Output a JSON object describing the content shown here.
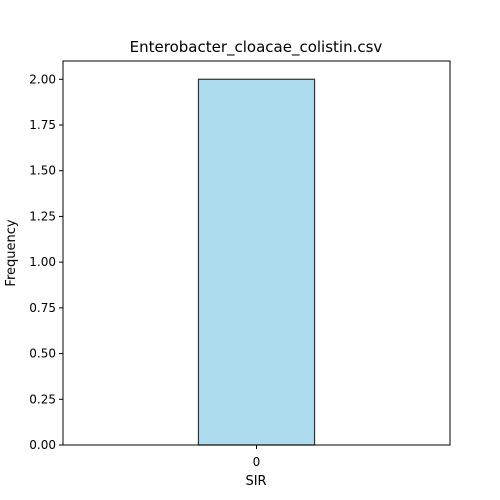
{
  "chart_data": {
    "type": "bar",
    "title": "Enterobacter_cloacae_colistin.csv",
    "xlabel": "SIR",
    "ylabel": "Frequency",
    "categories": [
      "0"
    ],
    "values": [
      2
    ],
    "ylim": [
      0,
      2.1
    ],
    "yticks": [
      "0.00",
      "0.25",
      "0.50",
      "0.75",
      "1.00",
      "1.25",
      "1.50",
      "1.75",
      "2.00"
    ],
    "grid": false,
    "legend": "none",
    "colors": {
      "bar_fill": "#ADDCEF",
      "bar_edge": "#333333",
      "axis": "#000000"
    }
  }
}
